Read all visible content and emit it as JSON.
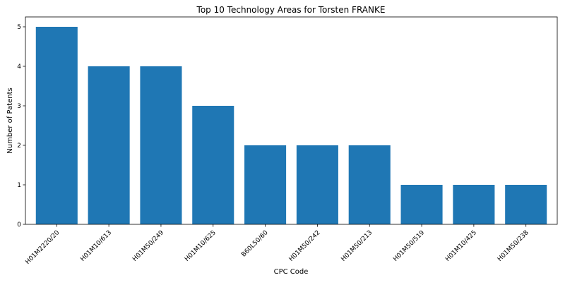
{
  "chart_data": {
    "type": "bar",
    "title": "Top 10 Technology Areas for Torsten FRANKE",
    "xlabel": "CPC Code",
    "ylabel": "Number of Patents",
    "categories": [
      "H01M2220/20",
      "H01M10/613",
      "H01M50/249",
      "H01M10/625",
      "B60L50/60",
      "H01M50/242",
      "H01M50/213",
      "H01M50/519",
      "H01M10/425",
      "H01M50/238"
    ],
    "values": [
      5,
      4,
      4,
      3,
      2,
      2,
      2,
      1,
      1,
      1
    ],
    "ylim": [
      0,
      5.25
    ],
    "yticks": [
      0,
      1,
      2,
      3,
      4,
      5
    ],
    "grid": false,
    "legend": "none",
    "bar_color": "#1f77b4",
    "axis_color": "#000000"
  }
}
